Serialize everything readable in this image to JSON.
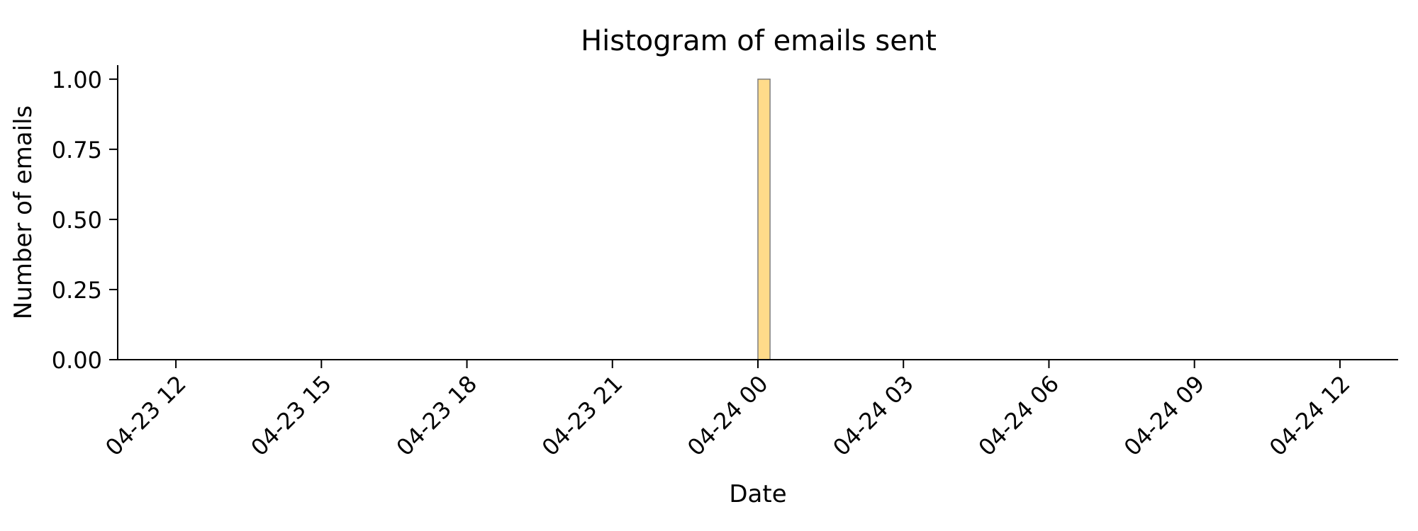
{
  "chart_data": {
    "type": "bar",
    "title": "Histogram of emails sent",
    "xlabel": "Date",
    "ylabel": "Number of emails",
    "x_ticks": [
      "04-23 12",
      "04-23 15",
      "04-23 18",
      "04-23 21",
      "04-24 00",
      "04-24 03",
      "04-24 06",
      "04-24 09",
      "04-24 12"
    ],
    "y_ticks": [
      "0.00",
      "0.25",
      "0.50",
      "0.75",
      "1.00"
    ],
    "xlim": [
      "2023-04-23 10:48",
      "2023-04-24 13:12"
    ],
    "ylim": [
      0,
      1.05
    ],
    "bars": [
      {
        "start": "2023-04-24 00:00",
        "end": "2023-04-24 00:15",
        "value": 1
      }
    ],
    "bar_color": "#FFDB8A",
    "bar_edge_color": "#7f7f7f",
    "grid": false,
    "legend": "none"
  }
}
